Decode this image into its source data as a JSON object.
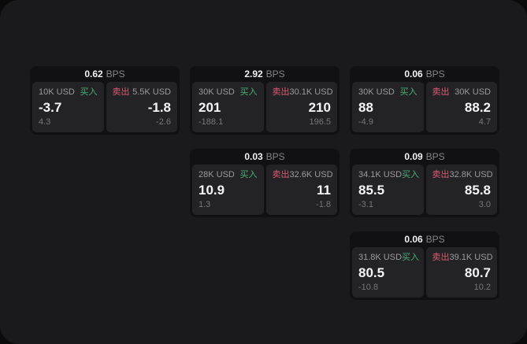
{
  "labels": {
    "buy": "买入",
    "sell": "卖出",
    "bps_unit": "BPS"
  },
  "colors": {
    "buy_green": "#4caf72",
    "sell_red": "#dd5a71",
    "window_bg": "#1a1a1c",
    "card_bg": "#111113",
    "panel_bg": "#232326",
    "main_text": "#f5f5f6",
    "muted_text": "#9a9aa0",
    "sub_text": "#77777d"
  },
  "cards": [
    {
      "bps": "0.62",
      "buy": {
        "amount": "10K USD",
        "price": "-3.7",
        "delta": "4.3"
      },
      "sell": {
        "amount": "5.5K USD",
        "price": "-1.8",
        "delta": "-2.6"
      }
    },
    {
      "bps": "2.92",
      "buy": {
        "amount": "30K USD",
        "price": "201",
        "delta": "-188.1"
      },
      "sell": {
        "amount": "30.1K USD",
        "price": "210",
        "delta": "196.5"
      }
    },
    {
      "bps": "0.06",
      "buy": {
        "amount": "30K USD",
        "price": "88",
        "delta": "-4.9"
      },
      "sell": {
        "amount": "30K USD",
        "price": "88.2",
        "delta": "4.7"
      }
    },
    {
      "bps": "0.03",
      "buy": {
        "amount": "28K USD",
        "price": "10.9",
        "delta": "1.3"
      },
      "sell": {
        "amount": "32.6K USD",
        "price": "11",
        "delta": "-1.8"
      }
    },
    {
      "bps": "0.09",
      "buy": {
        "amount": "34.1K USD",
        "price": "85.5",
        "delta": "-3.1"
      },
      "sell": {
        "amount": "32.8K USD",
        "price": "85.8",
        "delta": "3.0"
      }
    },
    {
      "bps": "0.06",
      "buy": {
        "amount": "31.8K USD",
        "price": "80.5",
        "delta": "-10.8"
      },
      "sell": {
        "amount": "39.1K USD",
        "price": "80.7",
        "delta": "10.2"
      }
    }
  ]
}
